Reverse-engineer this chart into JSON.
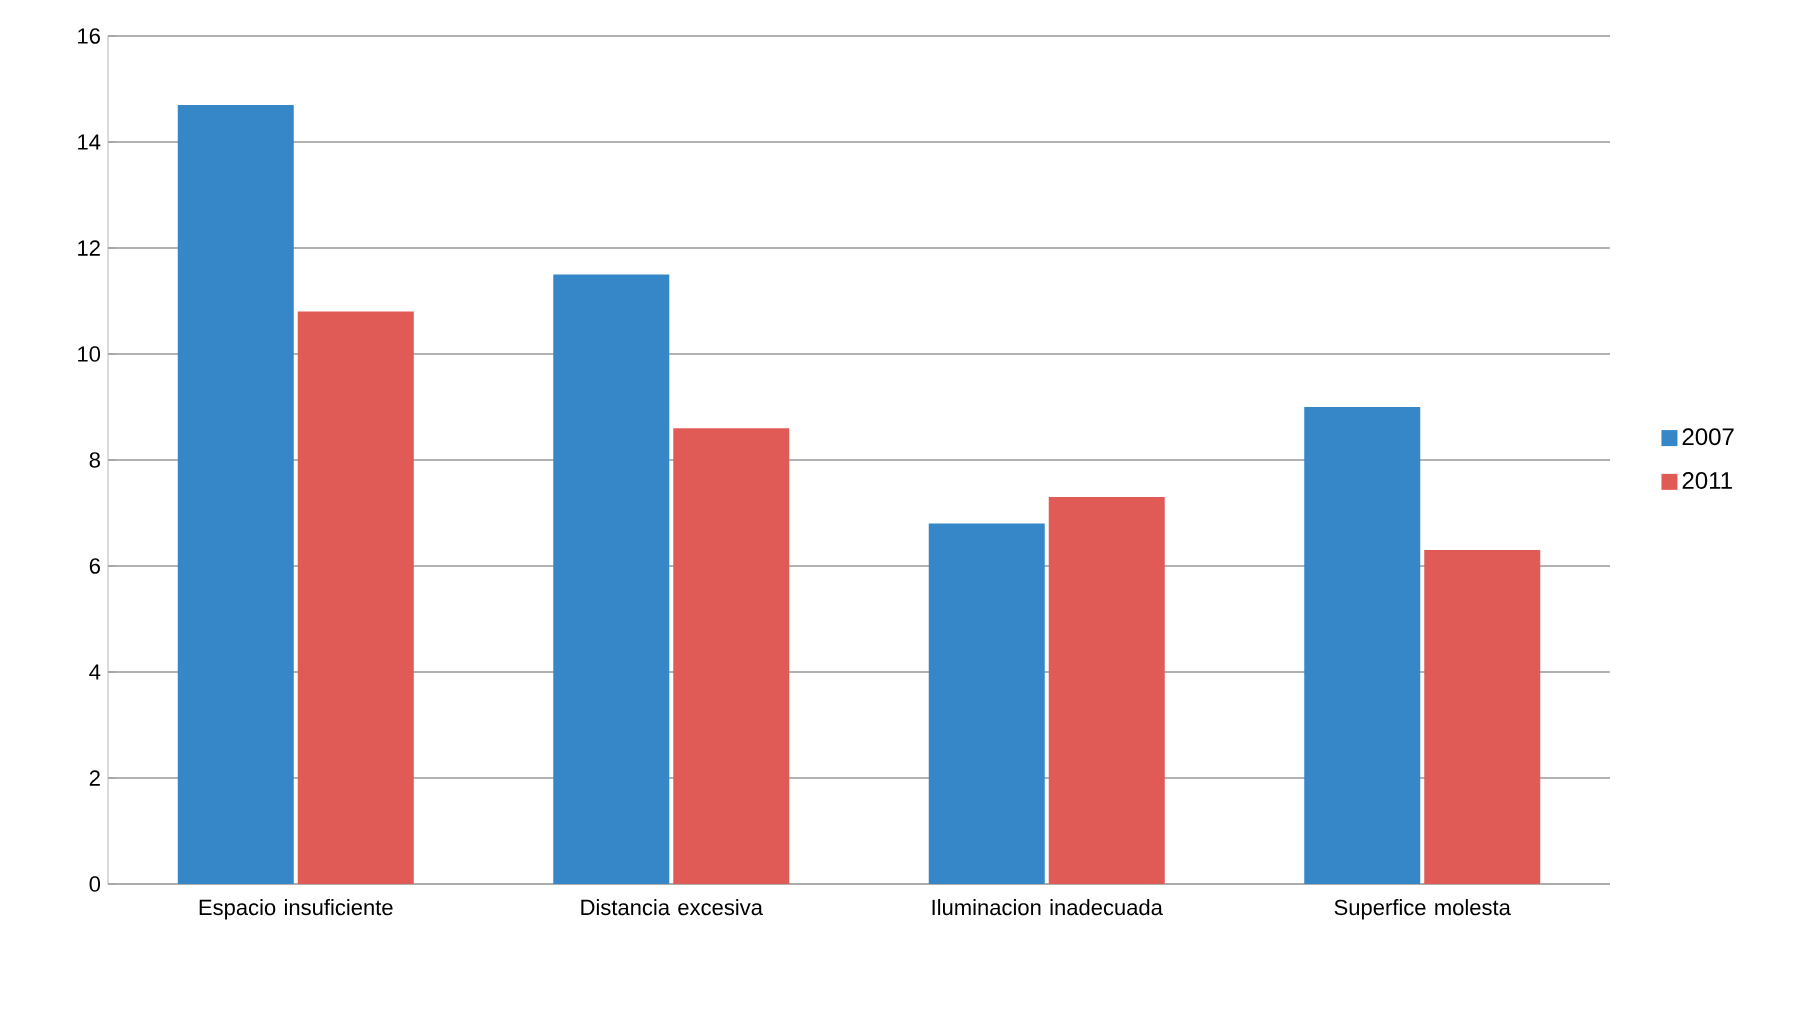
{
  "chart_data": {
    "type": "bar",
    "categories": [
      "Espacio insuficiente",
      "Distancia excesiva",
      "Iluminacion inadecuada",
      "Superfice molesta"
    ],
    "series": [
      {
        "name": "2007",
        "color": "#3587c8",
        "values": [
          14.7,
          11.5,
          6.8,
          9.0
        ]
      },
      {
        "name": "2011",
        "color": "#e05a56",
        "values": [
          10.8,
          8.6,
          7.3,
          6.3
        ]
      }
    ],
    "ylim": [
      0,
      16
    ],
    "yticks": [
      0,
      2,
      4,
      6,
      8,
      10,
      12,
      14,
      16
    ],
    "grid": "y",
    "legend": "right"
  }
}
